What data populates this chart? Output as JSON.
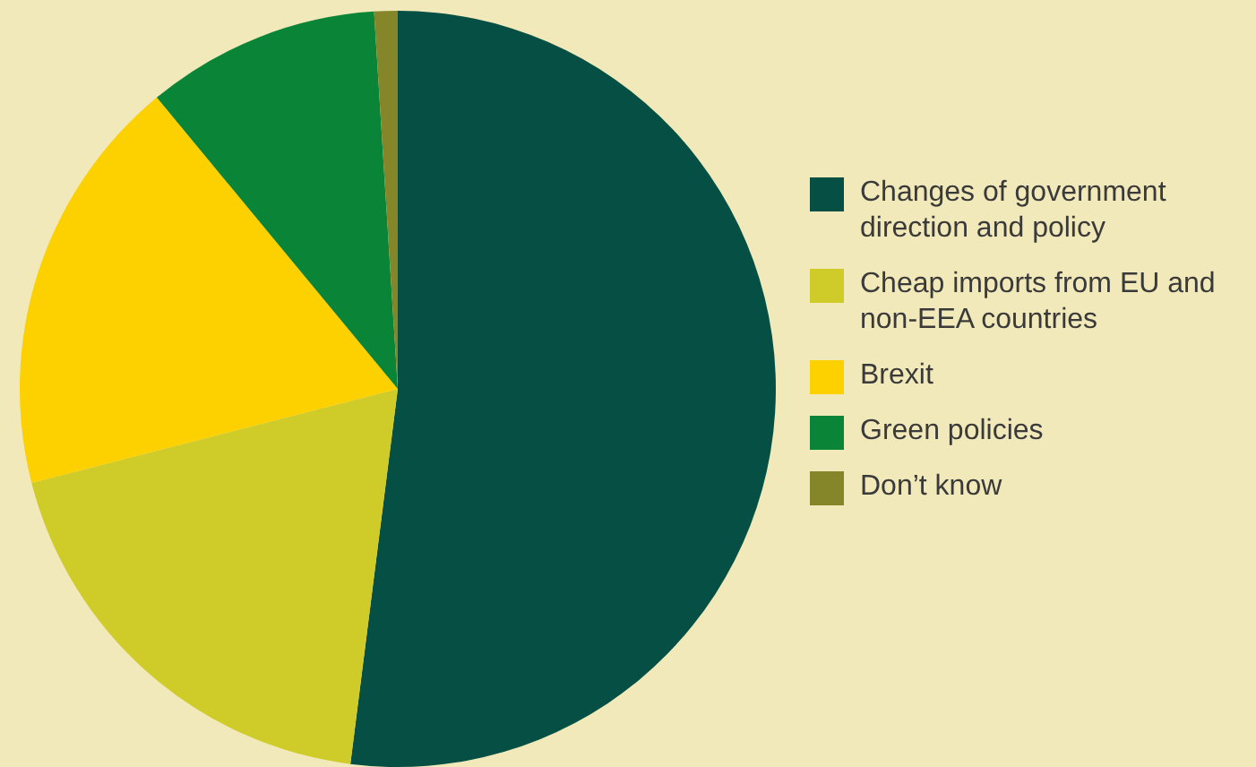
{
  "chart_data": {
    "type": "pie",
    "categories": [
      "Changes of government direction and policy",
      "Cheap imports from EU and non-EEA countries",
      "Brexit",
      "Green policies",
      "Don’t know"
    ],
    "values": [
      52,
      19,
      18,
      10,
      1
    ],
    "colors": [
      "#054f44",
      "#cfcc2a",
      "#fdd000",
      "#0a8436",
      "#85862a"
    ],
    "legend": "right"
  }
}
